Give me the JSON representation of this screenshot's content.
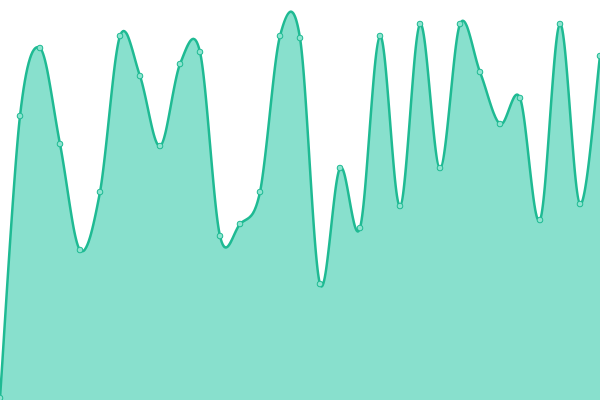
{
  "chart_data": {
    "type": "area",
    "categories": [
      null,
      null,
      null,
      null,
      null,
      null,
      null,
      null,
      null,
      null,
      null,
      null,
      null,
      null,
      null,
      null,
      null,
      null,
      null,
      null,
      null,
      null,
      null,
      null,
      null,
      null,
      null,
      null,
      null,
      null,
      null
    ],
    "values": [
      0.5,
      71,
      88,
      64,
      37.5,
      52,
      91,
      81,
      63.5,
      84,
      87,
      41,
      44,
      52,
      91,
      90.5,
      29,
      58,
      43,
      91,
      48.5,
      94,
      58,
      94,
      82,
      69,
      75.5,
      45,
      94,
      49,
      86
    ],
    "ylim": [
      0,
      100
    ],
    "color": "#1fba93",
    "fill_color": "#88e0cd",
    "point_fill": "#8ee3cf"
  }
}
